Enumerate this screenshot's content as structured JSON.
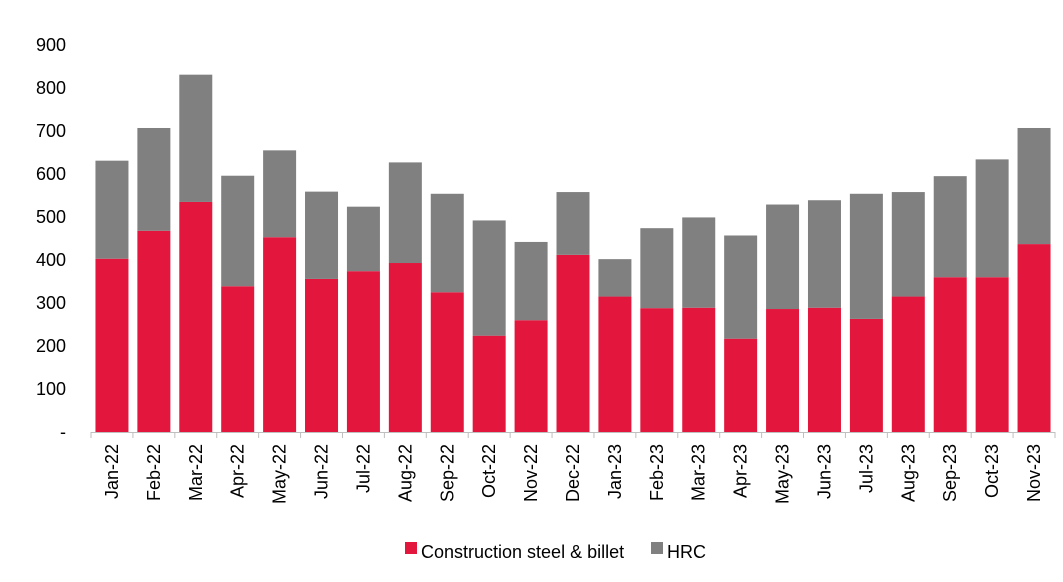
{
  "chart_data": {
    "type": "bar",
    "stacked": true,
    "categories": [
      "Jan-22",
      "Feb-22",
      "Mar-22",
      "Apr-22",
      "May-22",
      "Jun-22",
      "Jul-22",
      "Aug-22",
      "Sep-22",
      "Oct-22",
      "Nov-22",
      "Dec-22",
      "Jan-23",
      "Feb-23",
      "Mar-23",
      "Apr-23",
      "May-23",
      "Jun-23",
      "Jul-23",
      "Aug-23",
      "Sep-23",
      "Oct-23",
      "Nov-23"
    ],
    "series": [
      {
        "name": "Construction steel & billet",
        "color": "#e3173e",
        "values": [
          403,
          468,
          535,
          339,
          453,
          356,
          374,
          393,
          325,
          224,
          260,
          412,
          315,
          288,
          289,
          217,
          286,
          289,
          263,
          315,
          360,
          360,
          437
        ]
      },
      {
        "name": "HRC",
        "color": "#808080",
        "values": [
          228,
          239,
          296,
          257,
          202,
          203,
          150,
          234,
          229,
          268,
          182,
          146,
          87,
          186,
          210,
          240,
          243,
          250,
          291,
          243,
          235,
          274,
          270
        ]
      }
    ],
    "y_ticks": [
      "-",
      "100",
      "200",
      "300",
      "400",
      "500",
      "600",
      "700",
      "800",
      "900"
    ],
    "ylim": [
      0,
      900
    ],
    "grid": false,
    "legend_position": "bottom-center"
  }
}
